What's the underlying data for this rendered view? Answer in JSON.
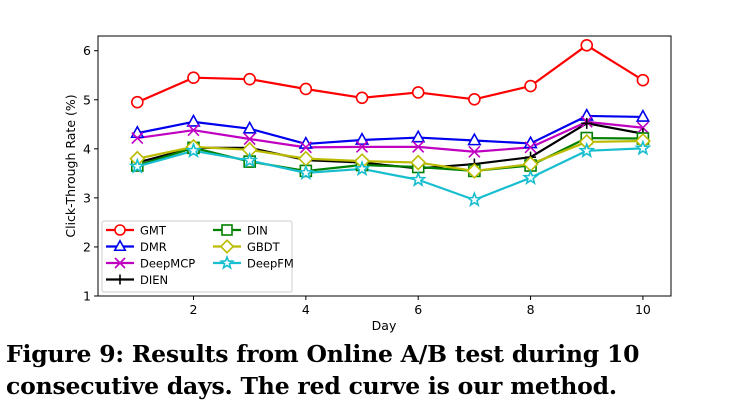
{
  "chart_data": {
    "type": "line",
    "xlabel": "Day",
    "ylabel": "Click-Through Rate (%)",
    "xlim": [
      0.3,
      10.5
    ],
    "ylim": [
      1,
      6.3
    ],
    "xticks": [
      2,
      4,
      6,
      8,
      10
    ],
    "yticks": [
      1,
      2,
      3,
      4,
      5,
      6
    ],
    "x": [
      1,
      2,
      3,
      4,
      5,
      6,
      7,
      8,
      9,
      10
    ],
    "legend_position": "bottom-left",
    "series": [
      {
        "name": "GMT",
        "color": "#ff0000",
        "marker": "circle",
        "values": [
          4.95,
          5.45,
          5.42,
          5.22,
          5.04,
          5.15,
          5.01,
          5.28,
          6.11,
          5.4
        ]
      },
      {
        "name": "DMR",
        "color": "#0000ee",
        "marker": "triangle",
        "values": [
          4.32,
          4.55,
          4.41,
          4.1,
          4.18,
          4.23,
          4.17,
          4.11,
          4.67,
          4.65
        ]
      },
      {
        "name": "DeepMCP",
        "color": "#c000c0",
        "marker": "x",
        "values": [
          4.22,
          4.38,
          4.2,
          4.03,
          4.04,
          4.04,
          3.94,
          4.03,
          4.55,
          4.43
        ]
      },
      {
        "name": "DIEN",
        "color": "#000000",
        "marker": "plus",
        "values": [
          3.72,
          4.02,
          4.02,
          3.77,
          3.72,
          3.6,
          3.69,
          3.83,
          4.52,
          4.31
        ]
      },
      {
        "name": "DIN",
        "color": "#008000",
        "marker": "square",
        "values": [
          3.66,
          4.02,
          3.74,
          3.55,
          3.67,
          3.63,
          3.55,
          3.66,
          4.22,
          4.21
        ]
      },
      {
        "name": "GBDT",
        "color": "#bbbb00",
        "marker": "diamond",
        "values": [
          3.8,
          4.04,
          3.98,
          3.8,
          3.75,
          3.72,
          3.55,
          3.69,
          4.14,
          4.16
        ]
      },
      {
        "name": "DeepFM",
        "color": "#17becf",
        "marker": "star",
        "values": [
          3.64,
          3.96,
          3.76,
          3.51,
          3.59,
          3.37,
          2.96,
          3.41,
          3.96,
          4.01
        ]
      }
    ]
  },
  "caption": "Figure 9: Results from Online A/B test during 10 consecutive days. The red curve is our method."
}
